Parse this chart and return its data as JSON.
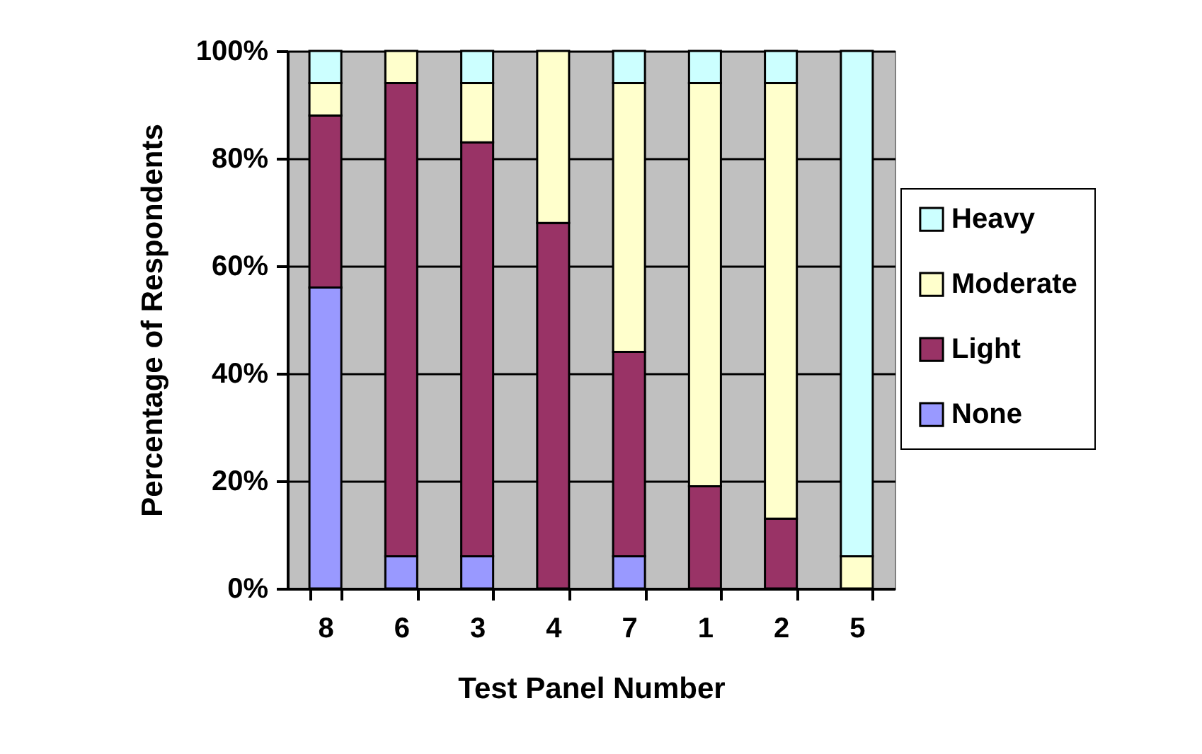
{
  "chart_data": {
    "type": "bar",
    "stacked": true,
    "xlabel": "Test Panel Number",
    "ylabel": "Percentage of Respondents",
    "categories": [
      "8",
      "6",
      "3",
      "4",
      "7",
      "1",
      "2",
      "5"
    ],
    "series": [
      {
        "name": "None",
        "color": "#9999ff",
        "values": [
          56,
          6,
          6,
          0,
          6,
          0,
          0,
          0
        ]
      },
      {
        "name": "Light",
        "color": "#993366",
        "values": [
          32,
          88,
          77,
          68,
          38,
          19,
          13,
          0
        ]
      },
      {
        "name": "Moderate",
        "color": "#ffffcc",
        "values": [
          6,
          6,
          11,
          32,
          50,
          75,
          81,
          6
        ]
      },
      {
        "name": "Heavy",
        "color": "#ccffff",
        "values": [
          6,
          0,
          6,
          0,
          6,
          6,
          6,
          94
        ]
      }
    ],
    "ylim": [
      0,
      100
    ],
    "yticks": [
      {
        "value": 0,
        "label": "0%"
      },
      {
        "value": 20,
        "label": "20%"
      },
      {
        "value": 40,
        "label": "40%"
      },
      {
        "value": 60,
        "label": "60%"
      },
      {
        "value": 80,
        "label": "80%"
      },
      {
        "value": 100,
        "label": "100%"
      }
    ],
    "grid": "y",
    "legend": "right"
  }
}
